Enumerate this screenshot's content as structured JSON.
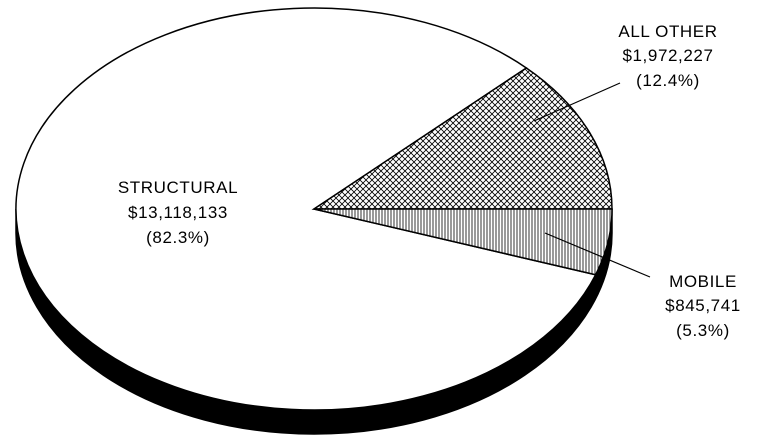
{
  "chart_data": {
    "type": "pie",
    "style": "3d",
    "title": "",
    "slices": [
      {
        "category": "STRUCTURAL",
        "amount": "$13,118,133",
        "percent_label": "(82.3%)",
        "value": 13118133,
        "percent": 82.3,
        "fill": "white"
      },
      {
        "category": "ALL OTHER",
        "amount": "$1,972,227",
        "percent_label": "(12.4%)",
        "value": 1972227,
        "percent": 12.4,
        "fill": "cross-hatch"
      },
      {
        "category": "MOBILE",
        "amount": "$845,741",
        "percent_label": "(5.3%)",
        "value": 845741,
        "percent": 5.3,
        "fill": "vertical-lines"
      }
    ],
    "colors": {
      "outline": "#000000",
      "side": "#000000",
      "background": "#ffffff"
    }
  }
}
